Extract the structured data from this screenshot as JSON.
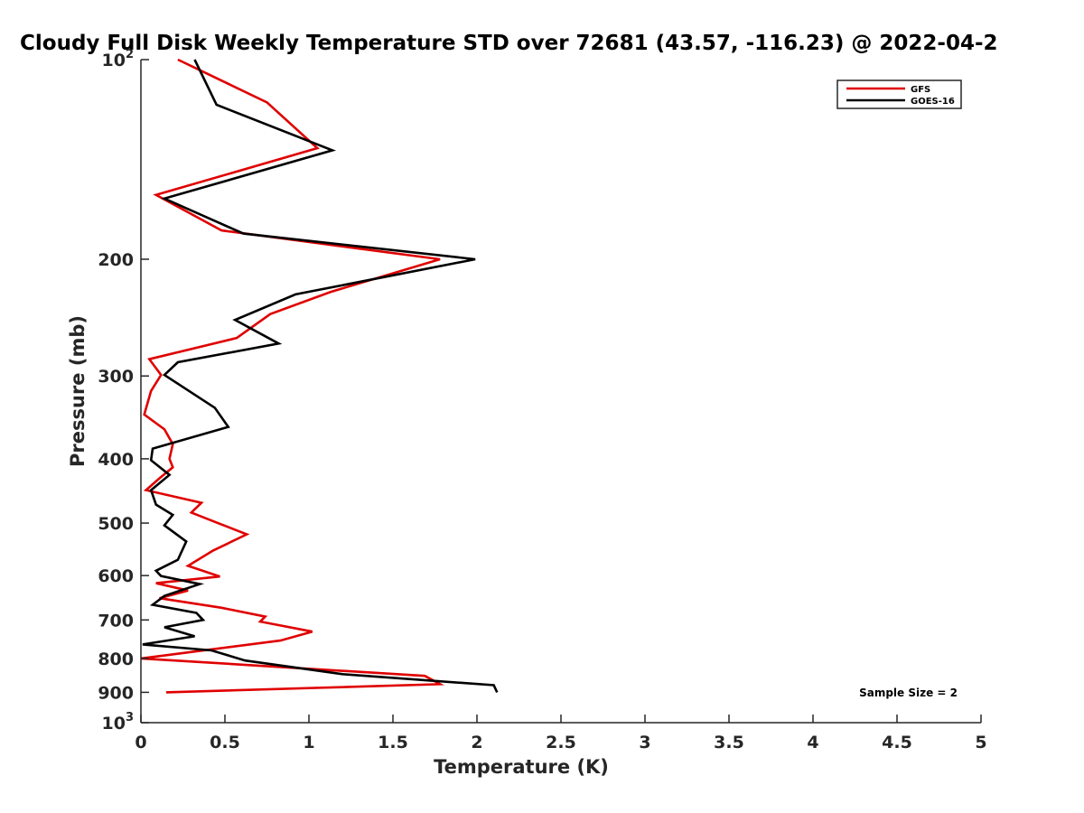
{
  "chart_data": {
    "type": "line",
    "title": "Cloudy Full Disk Weekly Temperature STD over 72681 (43.57, -116.23) @ 2022-04-2",
    "xlabel": "Temperature (K)",
    "ylabel": "Pressure (mb)",
    "xlim": [
      0,
      5
    ],
    "ylim": [
      1000,
      100
    ],
    "y_scale": "log",
    "y_reversed": true,
    "grid": false,
    "legend_position": "top-right",
    "x_ticks": [
      0,
      0.5,
      1,
      1.5,
      2,
      2.5,
      3,
      3.5,
      4,
      4.5,
      5
    ],
    "x_tick_labels": [
      "0",
      "0.5",
      "1",
      "1.5",
      "2",
      "2.5",
      "3",
      "3.5",
      "4",
      "4.5",
      "5"
    ],
    "y_ticks": [
      100,
      200,
      300,
      400,
      500,
      600,
      700,
      800,
      900,
      1000
    ],
    "y_tick_labels": [
      {
        "base": "10",
        "exp": "2"
      },
      {
        "base": "200",
        "exp": ""
      },
      {
        "base": "300",
        "exp": ""
      },
      {
        "base": "400",
        "exp": ""
      },
      {
        "base": "500",
        "exp": ""
      },
      {
        "base": "600",
        "exp": ""
      },
      {
        "base": "700",
        "exp": ""
      },
      {
        "base": "800",
        "exp": ""
      },
      {
        "base": "900",
        "exp": ""
      },
      {
        "base": "10",
        "exp": "3"
      }
    ],
    "series": [
      {
        "name": "GFS",
        "color": "#e00000",
        "points": [
          [
            0.22,
            100
          ],
          [
            0.75,
            116
          ],
          [
            1.05,
            136
          ],
          [
            0.09,
            160
          ],
          [
            0.48,
            181
          ],
          [
            1.78,
            200
          ],
          [
            1.13,
            224
          ],
          [
            0.77,
            242
          ],
          [
            0.57,
            263
          ],
          [
            0.05,
            283
          ],
          [
            0.12,
            299
          ],
          [
            0.06,
            316
          ],
          [
            0.02,
            343
          ],
          [
            0.14,
            361
          ],
          [
            0.19,
            380
          ],
          [
            0.17,
            400
          ],
          [
            0.19,
            412
          ],
          [
            0.11,
            428
          ],
          [
            0.03,
            446
          ],
          [
            0.36,
            466
          ],
          [
            0.3,
            482
          ],
          [
            0.45,
            499
          ],
          [
            0.63,
            520
          ],
          [
            0.43,
            550
          ],
          [
            0.28,
            580
          ],
          [
            0.47,
            602
          ],
          [
            0.09,
            616
          ],
          [
            0.28,
            632
          ],
          [
            0.11,
            649
          ],
          [
            0.48,
            671
          ],
          [
            0.74,
            692
          ],
          [
            0.71,
            704
          ],
          [
            1.02,
            729
          ],
          [
            0.83,
            752
          ],
          [
            0.0,
            800
          ],
          [
            1.69,
            850
          ],
          [
            1.78,
            875
          ],
          [
            0.15,
            900
          ]
        ]
      },
      {
        "name": "GOES-16",
        "color": "#000000",
        "points": [
          [
            0.32,
            100
          ],
          [
            0.45,
            117
          ],
          [
            1.14,
            137
          ],
          [
            0.14,
            162
          ],
          [
            0.61,
            183
          ],
          [
            1.99,
            200
          ],
          [
            0.92,
            226
          ],
          [
            0.56,
            247
          ],
          [
            0.82,
            268
          ],
          [
            0.22,
            286
          ],
          [
            0.14,
            299
          ],
          [
            0.44,
            335
          ],
          [
            0.52,
            358
          ],
          [
            0.07,
            386
          ],
          [
            0.06,
            402
          ],
          [
            0.17,
            423
          ],
          [
            0.06,
            446
          ],
          [
            0.09,
            469
          ],
          [
            0.19,
            486
          ],
          [
            0.14,
            504
          ],
          [
            0.27,
            533
          ],
          [
            0.22,
            568
          ],
          [
            0.09,
            590
          ],
          [
            0.12,
            601
          ],
          [
            0.35,
            618
          ],
          [
            0.14,
            644
          ],
          [
            0.07,
            664
          ],
          [
            0.33,
            683
          ],
          [
            0.37,
            700
          ],
          [
            0.14,
            718
          ],
          [
            0.32,
            741
          ],
          [
            0.01,
            762
          ],
          [
            0.42,
            778
          ],
          [
            0.62,
            806
          ],
          [
            1.2,
            845
          ],
          [
            2.1,
            878
          ],
          [
            2.12,
            900
          ]
        ]
      }
    ],
    "annotations": [
      "Sample Size = 2"
    ]
  }
}
